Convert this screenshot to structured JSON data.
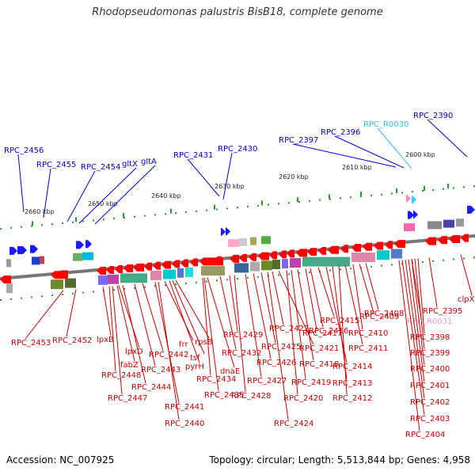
{
  "title": "Rhodopseudomonas palustris BisB18, complete genome",
  "footer": {
    "accession": "Accession: NC_007925",
    "summary": "Topology: circular; Length: 5,513,844 bp; Genes: 4,958"
  },
  "colors": {
    "forward": "#1a1aff",
    "reverse": "#ff0000",
    "rna": "#33ccff",
    "misc": "#ff88cc",
    "backbone": "#777777"
  },
  "scale": [
    "2660 kbp",
    "2650 kbp",
    "2640 kbp",
    "2630 kbp",
    "2620 kbp",
    "2610 kbp",
    "2600 kbp"
  ],
  "top_labels": [
    {
      "name": "RPC_2456",
      "color": "#0000cc"
    },
    {
      "name": "RPC_2455",
      "color": "#0000cc"
    },
    {
      "name": "RPC_2454",
      "color": "#0000cc"
    },
    {
      "name": "gltX",
      "color": "#0000cc"
    },
    {
      "name": "gltA",
      "color": "#0000cc"
    },
    {
      "name": "RPC_2431",
      "color": "#0000cc"
    },
    {
      "name": "RPC_2430",
      "color": "#0000cc"
    },
    {
      "name": "RPC_2397",
      "color": "#0000cc"
    },
    {
      "name": "RPC_2396",
      "color": "#0000cc"
    },
    {
      "name": "RPC_R0030",
      "color": "#33bbee"
    },
    {
      "name": "RPC_2390",
      "color": "#0000cc"
    }
  ],
  "bottom_labels": [
    "RPC_2453",
    "RPC_2452",
    "lpxB",
    "lpxD",
    "fabZ",
    "RPC_2448",
    "RPC_2447",
    "RPC_2444",
    "RPC_2443",
    "RPC_2442",
    "frr",
    "tsf",
    "pyrH",
    "rpsB",
    "RPC_2441",
    "RPC_2440",
    "RPC_2435",
    "RPC_2434",
    "dnaE",
    "RPC_2432",
    "RPC_2429",
    "RPC_2428",
    "RPC_2427",
    "RPC_2426",
    "RPC_2425",
    "RPC_2424",
    "RPC_2422",
    "RPC_2421",
    "RPC_2420",
    "RPC_2419",
    "RPC_2418",
    "RPC_2417",
    "RPC_2416",
    "RPC_2415",
    "RPC_2414",
    "RPC_2413",
    "RPC_2412",
    "RPC_2411",
    "RPC_2410",
    "RPC_2409",
    "RPC_2408",
    "RPC_R0031",
    "RPC_2404",
    "RPC_2403",
    "RPC_2402",
    "RPC_2401",
    "RPC_2400",
    "RPC_2399",
    "RPC_2398",
    "RPC_2395",
    "clpX"
  ],
  "bottom_label_special": {
    "RPC_R0031": "#ee99cc"
  }
}
